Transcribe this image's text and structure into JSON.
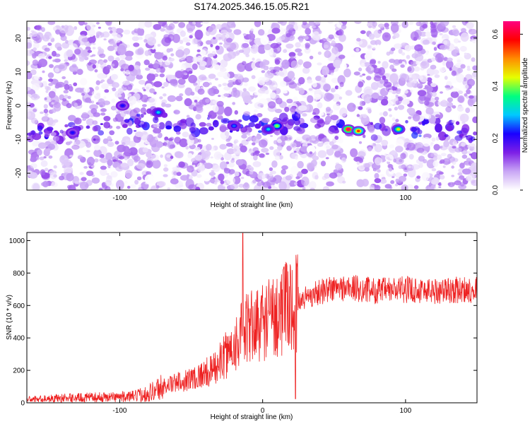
{
  "title": "S174.2025.346.15.05.R21",
  "chart_data": [
    {
      "type": "heatmap",
      "xlabel": "Height of straight line (km)",
      "ylabel": "Frequency (Hz)",
      "xlim": [
        -165,
        150
      ],
      "ylim": [
        -25,
        25
      ],
      "xticks": [
        -100,
        0,
        100
      ],
      "yticks": [
        -20,
        -10,
        0,
        10,
        20
      ],
      "colorbar": {
        "label": "Normalized spectral amplitude",
        "lim": [
          0,
          0.65
        ],
        "ticks": [
          0.0,
          0.2,
          0.4,
          0.6
        ],
        "colors": [
          "#ffffff",
          "#c9a6f5",
          "#7d1fe6",
          "#1a00ff",
          "#00c8ff",
          "#00ff80",
          "#e6ff00",
          "#ff8c00",
          "#ff0000",
          "#ff0080"
        ]
      },
      "ridge": {
        "description_points_x": [
          -130,
          -100,
          -75,
          -50,
          -25,
          0,
          25,
          50,
          75,
          100,
          125,
          145
        ],
        "frequency": [
          -8,
          -7,
          -3,
          -6,
          -5,
          -6,
          -5,
          -7,
          -7,
          -7,
          -7,
          -8
        ]
      },
      "hotspots": [
        {
          "x": 60,
          "y": -7,
          "amplitude": 0.65
        },
        {
          "x": 67,
          "y": -7.5,
          "amplitude": 0.55
        },
        {
          "x": 95,
          "y": -7,
          "amplitude": 0.45
        },
        {
          "x": 10,
          "y": -6,
          "amplitude": 0.4
        },
        {
          "x": 4,
          "y": -7,
          "amplitude": 0.3
        },
        {
          "x": -73,
          "y": -2,
          "amplitude": 0.3
        },
        {
          "x": -98,
          "y": 0,
          "amplitude": 0.22
        },
        {
          "x": -133,
          "y": -8,
          "amplitude": 0.22
        },
        {
          "x": -20,
          "y": -6,
          "amplitude": 0.25
        }
      ]
    },
    {
      "type": "line",
      "xlabel": "Height of straight line (km)",
      "ylabel": "SNR (10 * v/v)",
      "xlim": [
        -165,
        150
      ],
      "ylim": [
        0,
        1050
      ],
      "xticks": [
        -100,
        0,
        100
      ],
      "yticks": [
        0,
        200,
        400,
        600,
        800,
        1000
      ],
      "color": "#ee2222",
      "envelope": {
        "x": [
          -165,
          -140,
          -110,
          -90,
          -80,
          -70,
          -50,
          -35,
          -25,
          -15,
          -10,
          0,
          10,
          20,
          30,
          45,
          60,
          80,
          100,
          120,
          150
        ],
        "y": [
          20,
          30,
          35,
          40,
          60,
          100,
          150,
          200,
          300,
          420,
          460,
          500,
          550,
          600,
          650,
          700,
          710,
          690,
          700,
          690,
          700
        ]
      },
      "spikes": [
        {
          "x": -14,
          "y": 1045
        },
        {
          "x": 23,
          "y": 25
        }
      ]
    }
  ]
}
